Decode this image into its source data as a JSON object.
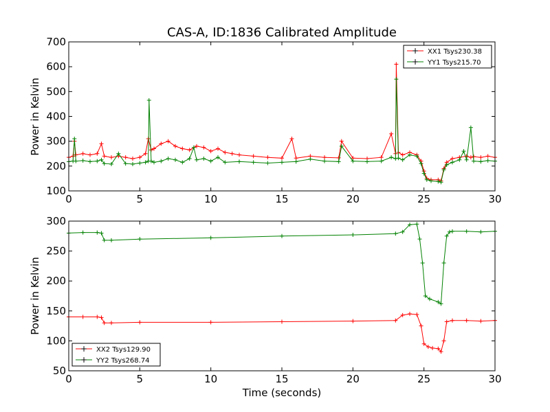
{
  "figure": {
    "title": "CAS-A, ID:1836 Calibrated Amplitude",
    "xlabel": "Time (seconds)"
  },
  "colors": {
    "xx": "#ff0000",
    "yy": "#008000"
  },
  "chart_data": [
    {
      "type": "line",
      "ylabel": "Power in Kelvin",
      "xlim": [
        0,
        30
      ],
      "ylim": [
        100,
        700
      ],
      "xticks": [
        "0",
        "5",
        "10",
        "15",
        "20",
        "25",
        "30"
      ],
      "yticks": [
        "100",
        "200",
        "300",
        "400",
        "500",
        "600",
        "700"
      ],
      "grid": false,
      "legend": "top-right",
      "marker": "+",
      "series": [
        {
          "name": "XX1 Tsys230.38",
          "color": "#ff0000",
          "x": [
            0,
            0.3,
            0.4,
            0.5,
            1,
            1.5,
            2,
            2.3,
            2.5,
            3,
            3.5,
            4,
            4.5,
            5,
            5.4,
            5.6,
            5.8,
            6,
            6.5,
            7,
            7.5,
            8,
            8.5,
            9,
            9.5,
            10,
            10.5,
            11,
            11.5,
            12,
            13,
            14,
            15,
            15.7,
            16,
            17,
            18,
            19,
            19.2,
            20,
            21,
            22,
            22.7,
            23,
            23.05,
            23.2,
            23.5,
            24,
            24.5,
            24.8,
            25,
            25.2,
            25.5,
            26,
            26.2,
            26.4,
            26.6,
            27,
            27.5,
            28,
            28.3,
            28.5,
            29,
            29.5,
            30
          ],
          "y": [
            235,
            240,
            300,
            245,
            250,
            245,
            250,
            290,
            240,
            235,
            240,
            235,
            230,
            235,
            250,
            310,
            265,
            270,
            290,
            300,
            280,
            270,
            265,
            280,
            275,
            260,
            270,
            255,
            250,
            245,
            240,
            235,
            232,
            310,
            232,
            240,
            235,
            233,
            300,
            232,
            230,
            235,
            330,
            250,
            610,
            255,
            245,
            255,
            245,
            220,
            180,
            150,
            145,
            145,
            140,
            190,
            215,
            230,
            235,
            240,
            235,
            238,
            235,
            240,
            235
          ]
        },
        {
          "name": "YY1 Tsys215.70",
          "color": "#008000",
          "x": [
            0,
            0.3,
            0.4,
            0.5,
            1,
            1.5,
            2,
            2.3,
            2.5,
            3,
            3.5,
            4,
            4.5,
            5,
            5.4,
            5.6,
            5.65,
            5.8,
            6,
            6.5,
            7,
            7.5,
            8,
            8.5,
            8.8,
            9,
            9.5,
            10,
            10.5,
            11,
            12,
            13,
            14,
            15,
            16,
            17,
            18,
            19,
            19.2,
            20,
            21,
            22,
            22.7,
            23,
            23.05,
            23.2,
            23.5,
            24,
            24.5,
            24.8,
            25,
            25.2,
            25.5,
            26,
            26.2,
            26.4,
            26.6,
            27,
            27.5,
            27.8,
            28,
            28.3,
            28.5,
            29,
            29.5,
            30
          ],
          "y": [
            218,
            220,
            310,
            220,
            222,
            218,
            220,
            225,
            210,
            208,
            250,
            210,
            208,
            212,
            215,
            220,
            465,
            220,
            215,
            220,
            230,
            225,
            215,
            230,
            275,
            225,
            230,
            220,
            235,
            215,
            218,
            215,
            212,
            215,
            218,
            228,
            220,
            218,
            280,
            220,
            218,
            220,
            235,
            230,
            550,
            232,
            225,
            245,
            240,
            210,
            170,
            145,
            140,
            138,
            135,
            185,
            205,
            215,
            225,
            260,
            225,
            355,
            220,
            218,
            222,
            220
          ]
        }
      ]
    },
    {
      "type": "line",
      "ylabel": "Power in Kelvin",
      "xlim": [
        0,
        30
      ],
      "ylim": [
        50,
        300
      ],
      "xticks": [
        "0",
        "5",
        "10",
        "15",
        "20",
        "25",
        "30"
      ],
      "yticks": [
        "50",
        "100",
        "150",
        "200",
        "250",
        "300"
      ],
      "grid": false,
      "legend": "bottom-left",
      "marker": "+",
      "series": [
        {
          "name": "XX2 Tsys129.90",
          "color": "#ff0000",
          "x": [
            0,
            1,
            2,
            2.3,
            2.5,
            3,
            5,
            10,
            15,
            20,
            23,
            23.5,
            24,
            24.5,
            24.8,
            25,
            25.3,
            25.6,
            26,
            26.2,
            26.4,
            26.6,
            27,
            28,
            29,
            30
          ],
          "y": [
            140,
            140,
            140,
            139,
            130,
            130,
            131,
            131,
            132,
            133,
            134,
            143,
            145,
            144,
            125,
            95,
            90,
            88,
            87,
            82,
            100,
            132,
            134,
            134,
            133,
            134
          ]
        },
        {
          "name": "YY2 Tsys268.74",
          "color": "#008000",
          "x": [
            0,
            1,
            2,
            2.3,
            2.5,
            3,
            5,
            10,
            15,
            20,
            23,
            23.5,
            24,
            24.5,
            24.7,
            24.9,
            25.1,
            25.4,
            26,
            26.2,
            26.4,
            26.6,
            26.8,
            27,
            28,
            29,
            30
          ],
          "y": [
            280,
            281,
            281,
            280,
            268,
            268,
            270,
            272,
            275,
            277,
            279,
            282,
            294,
            295,
            270,
            230,
            175,
            170,
            165,
            162,
            230,
            275,
            282,
            283,
            283,
            282,
            283
          ]
        }
      ]
    }
  ]
}
